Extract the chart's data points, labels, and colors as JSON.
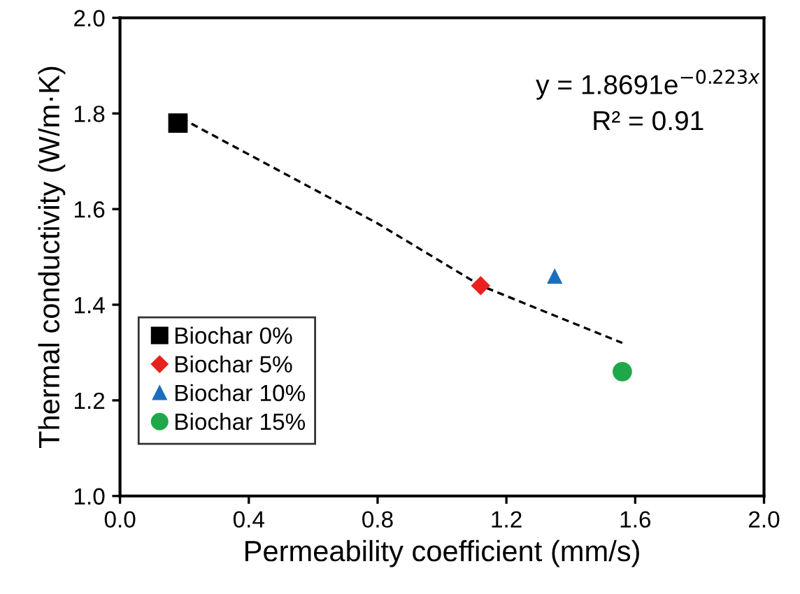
{
  "chart_data": {
    "type": "scatter",
    "xlabel": "Permeability coefficient (mm/s)",
    "ylabel": "Thermal conductivity (W/m·K)",
    "xlim": [
      0.0,
      2.0
    ],
    "xticks": [
      {
        "value": 0,
        "label": "0.0"
      },
      0.4,
      0.8,
      1.2,
      1.6,
      {
        "value": 2,
        "label": "2.0"
      }
    ],
    "ylim": [
      1.0,
      2.0
    ],
    "yticks": [
      {
        "value": 1,
        "label": "1.0"
      },
      1.2,
      1.4,
      1.6,
      1.8,
      {
        "value": 2,
        "label": "2.0"
      }
    ],
    "grid": false,
    "legend": "bottom left",
    "series": [
      {
        "name": "Biochar 0%",
        "color": "#000000",
        "marker": "square",
        "x": [
          0.18
        ],
        "values": [
          1.78
        ]
      },
      {
        "name": "Biochar 5%",
        "color": "#e8211f",
        "marker": "diamond",
        "x": [
          1.12
        ],
        "values": [
          1.44
        ]
      },
      {
        "name": "Biochar 10%",
        "color": "#1b6fba",
        "marker": "triangle",
        "x": [
          1.35
        ],
        "values": [
          1.46
        ]
      },
      {
        "name": "Biochar 15%",
        "color": "#1fa84a",
        "marker": "circle",
        "x": [
          1.56
        ],
        "values": [
          1.26
        ]
      },
      {
        "type": "line",
        "color": "#000000",
        "marker": "none",
        "line_style": "dashed",
        "x": [
          0.19,
          0.8,
          1.12,
          1.56
        ],
        "values": [
          1.79,
          1.57,
          1.44,
          1.32
        ]
      }
    ],
    "annotations": [
      "y = 1.8691e$^{−0.223x}$",
      "R² = 0.91"
    ]
  }
}
